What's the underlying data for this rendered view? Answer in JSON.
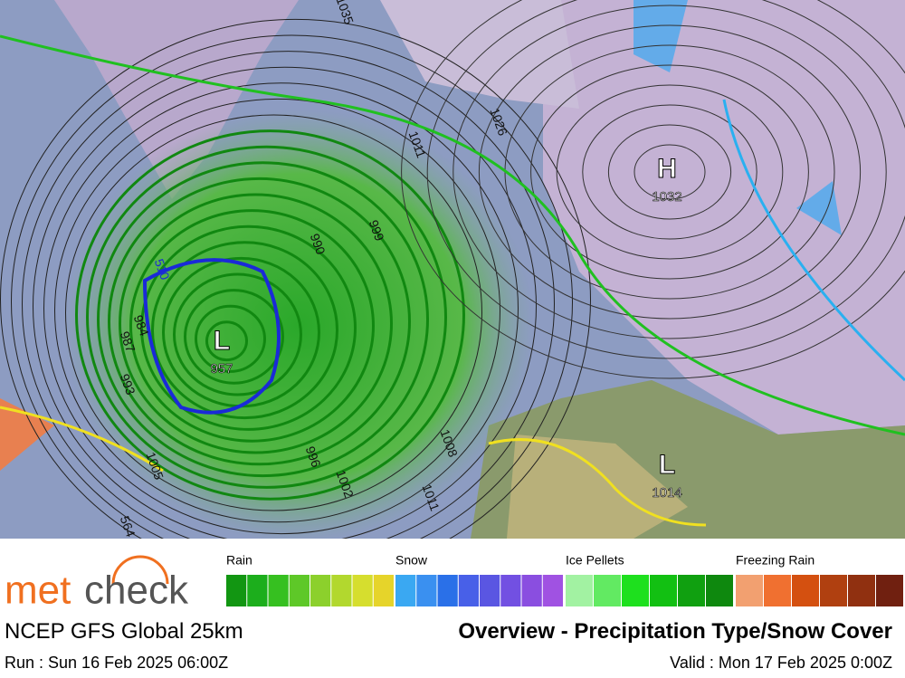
{
  "map": {
    "pressure_centers": [
      {
        "symbol": "H",
        "value": 1032
      },
      {
        "symbol": "L",
        "value": 957
      },
      {
        "symbol": "L",
        "value": 1014
      }
    ],
    "isobar_labels": [
      1035,
      1026,
      1011,
      999,
      990,
      1008,
      1002,
      996,
      1005,
      993,
      987,
      984,
      1011,
      510,
      564
    ]
  },
  "logo": {
    "part1": "met",
    "part2": "check"
  },
  "legend": [
    {
      "label": "Rain",
      "colors": [
        "#129612",
        "#1cae1c",
        "#36c020",
        "#5ec828",
        "#8cd02c",
        "#b2d82e",
        "#d6de2e",
        "#e6d42a"
      ]
    },
    {
      "label": "Snow",
      "colors": [
        "#3aa8f2",
        "#3a90f0",
        "#2a70e8",
        "#4860e8",
        "#5a56e2",
        "#7250e2",
        "#8a4ee0",
        "#a052e2"
      ]
    },
    {
      "label": "Ice Pellets",
      "colors": [
        "#a2f2a2",
        "#62ea62",
        "#1ee01e",
        "#12c012",
        "#10a010",
        "#0e880e"
      ]
    },
    {
      "label": "Freezing Rain",
      "colors": [
        "#f2a070",
        "#f07030",
        "#d45010",
        "#b04010",
        "#903010",
        "#702010"
      ]
    }
  ],
  "footer": {
    "model": "NCEP GFS Global 25km",
    "title": "Overview - Precipitation Type/Snow Cover",
    "run": "Run : Sun 16 Feb 2025 06:00Z",
    "valid": "Valid : Mon 17 Feb 2025 0:00Z"
  }
}
